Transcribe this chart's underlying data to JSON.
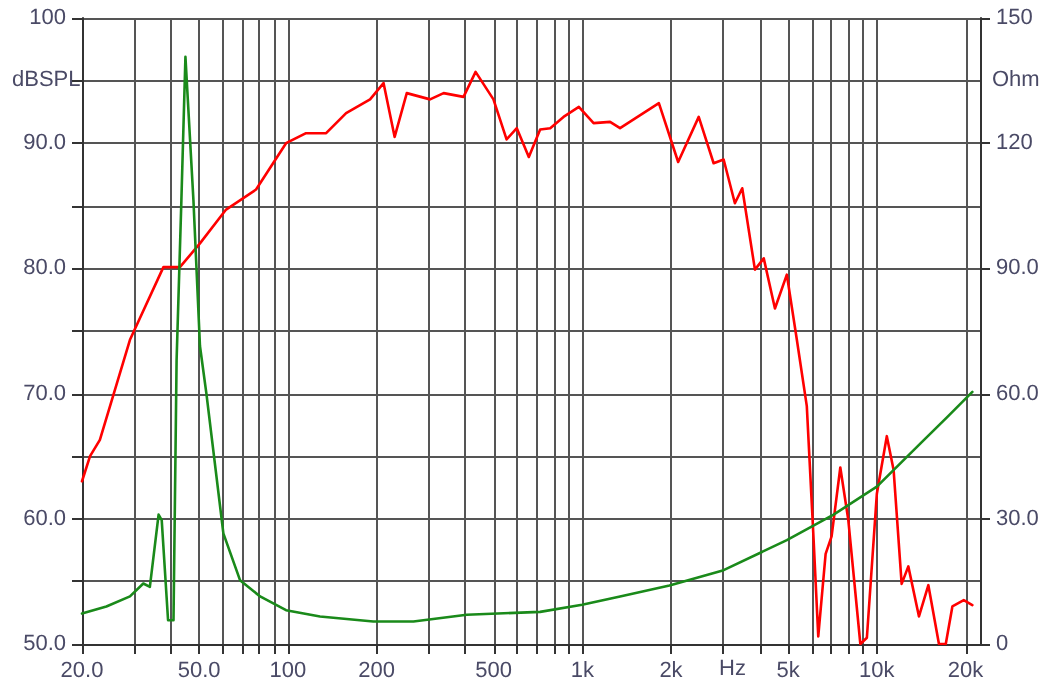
{
  "chart_data": {
    "type": "line",
    "xlabel": "Hz",
    "ylabel": "dBSPL",
    "y2label": "Ohm",
    "log": "x",
    "grid": true,
    "marker": "none",
    "line_style": "solid",
    "xlim": [
      20,
      22400
    ],
    "ylim": [
      50,
      100
    ],
    "y2lim": [
      0,
      150
    ],
    "xticks": [
      {
        "value": 20,
        "label": "20.0"
      },
      {
        "value": 30,
        "label": null
      },
      {
        "value": 40,
        "label": null
      },
      {
        "value": 50,
        "label": "50.0"
      },
      {
        "value": 60,
        "label": null
      },
      {
        "value": 70,
        "label": null
      },
      {
        "value": 80,
        "label": null
      },
      {
        "value": 90,
        "label": null
      },
      100,
      200,
      {
        "value": 300,
        "label": null
      },
      {
        "value": 400,
        "label": null
      },
      500,
      {
        "value": 600,
        "label": null
      },
      {
        "value": 700,
        "label": null
      },
      {
        "value": 800,
        "label": null
      },
      {
        "value": 900,
        "label": null
      },
      {
        "value": 1000,
        "label": "1k"
      },
      {
        "value": 2000,
        "label": "2k"
      },
      {
        "value": 3000,
        "label": null
      },
      {
        "value": 4000,
        "label": null
      },
      {
        "value": 5000,
        "label": "5k"
      },
      {
        "value": 6000,
        "label": null
      },
      {
        "value": 7000,
        "label": null
      },
      {
        "value": 8000,
        "label": null
      },
      {
        "value": 9000,
        "label": null
      },
      {
        "value": 10000,
        "label": "10k"
      },
      {
        "value": 20000,
        "label": "20k"
      }
    ],
    "yticks": [
      {
        "value": 50,
        "label": "50.0"
      },
      {
        "value": 55,
        "label": null
      },
      {
        "value": 60,
        "label": "60.0"
      },
      {
        "value": 65,
        "label": null
      },
      {
        "value": 70,
        "label": "70.0"
      },
      {
        "value": 75,
        "label": null
      },
      {
        "value": 80,
        "label": "80.0"
      },
      {
        "value": 85,
        "label": null
      },
      {
        "value": 90,
        "label": "90.0"
      },
      {
        "value": 95,
        "label": null
      },
      100
    ],
    "y2ticks": [
      0,
      {
        "value": 30,
        "label": "30.0"
      },
      {
        "value": 60,
        "label": "60.0"
      },
      {
        "value": 90,
        "label": "90.0"
      },
      120,
      150
    ],
    "series": [
      {
        "color": "#ff0000",
        "x": [
          20,
          21.3,
          23.0,
          29.1,
          37.8,
          43.0,
          50.3,
          61.7,
          78.0,
          98.6,
          115.3,
          134.9,
          157.7,
          190.2,
          211.3,
          230.5,
          253.4,
          304,
          338,
          395,
          434,
          499,
          553,
          599,
          658,
          719,
          778,
          863,
          973,
          1092,
          1242,
          1343,
          1819,
          2115,
          2484,
          2791,
          3018,
          3296,
          3491,
          3855,
          4130,
          4508,
          4947,
          5350,
          5783,
          6100,
          6325,
          6700,
          7020,
          7515,
          8000,
          8790,
          9250,
          10000,
          10810,
          11400,
          12140,
          12790,
          13900,
          14960,
          16250,
          17140,
          18050,
          19730,
          21100
        ],
        "values": [
          63.0,
          65.0,
          66.3,
          74.3,
          80.1,
          80.1,
          82.0,
          84.7,
          86.3,
          90.0,
          90.8,
          90.8,
          92.4,
          93.5,
          94.8,
          90.5,
          94.0,
          93.5,
          94.0,
          93.7,
          95.7,
          93.5,
          90.3,
          91.2,
          88.9,
          91.1,
          91.2,
          92.1,
          92.9,
          91.6,
          91.7,
          91.2,
          93.2,
          88.5,
          92.1,
          88.4,
          88.7,
          85.2,
          86.4,
          79.9,
          80.8,
          76.8,
          79.5,
          74.3,
          69.0,
          58.3,
          50.6,
          57.2,
          58.6,
          64.1,
          59.9,
          50.0,
          50.5,
          62.0,
          66.6,
          63.9,
          54.8,
          56.2,
          52.2,
          54.7,
          50.0,
          50.0,
          53.0,
          53.5,
          53.1
        ]
      },
      {
        "color": "#1a8a1a",
        "axis": "y2",
        "x": [
          20,
          24.2,
          29.1,
          32.3,
          34.0,
          36.4,
          37.3,
          39.2,
          40.9,
          41.9,
          43.5,
          44.9,
          47.8,
          50.3,
          52.9,
          60.4,
          68.8,
          80.5,
          98.6,
          128.6,
          195,
          267,
          405,
          719,
          998,
          1343,
          1976,
          3018,
          4947,
          7130,
          10000,
          14040,
          17400,
          21100
        ],
        "values": [
          7.3,
          9.0,
          11.4,
          14.5,
          13.7,
          31.0,
          29.7,
          5.7,
          5.7,
          68.0,
          106.3,
          140.7,
          106.3,
          71.4,
          60.0,
          26.5,
          15.3,
          11.4,
          8.1,
          6.6,
          5.4,
          5.4,
          7.0,
          7.7,
          9.4,
          11.4,
          14.0,
          17.7,
          24.9,
          31.0,
          37.7,
          48.0,
          54.5,
          60.4
        ]
      }
    ]
  }
}
